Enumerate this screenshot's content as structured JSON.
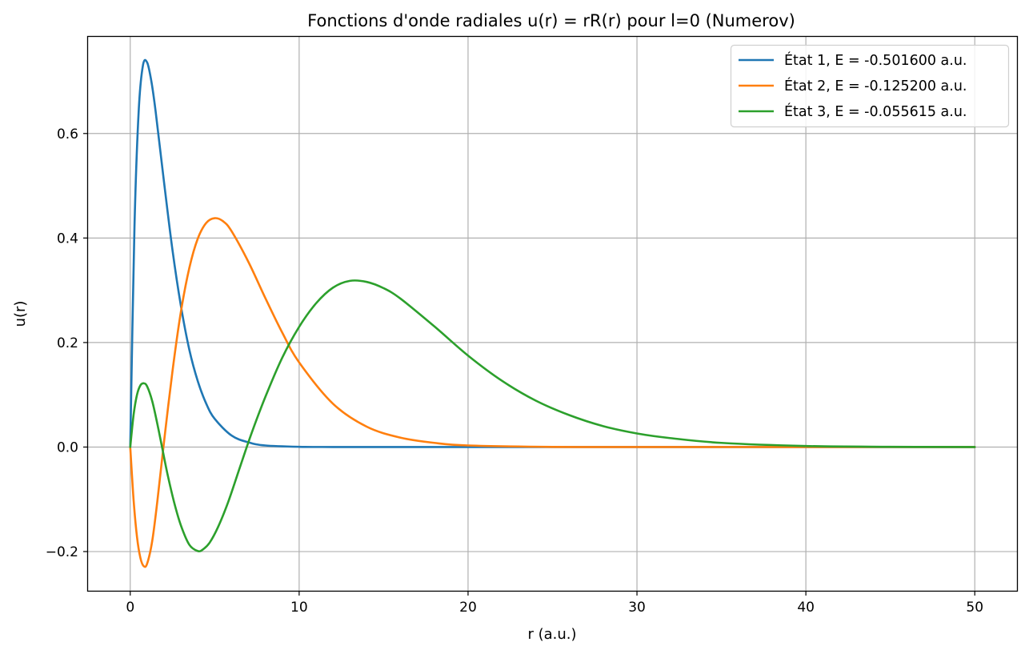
{
  "chart_data": {
    "type": "line",
    "title": "Fonctions d'onde radiales u(r) = rR(r) pour l=0 (Numerov)",
    "xlabel": "r (a.u.)",
    "ylabel": "u(r)",
    "xlim": [
      -2.5,
      52.5
    ],
    "ylim": [
      -0.275,
      0.785
    ],
    "xticks": [
      0,
      10,
      20,
      30,
      40,
      50
    ],
    "xtick_labels": [
      "0",
      "10",
      "20",
      "30",
      "40",
      "50"
    ],
    "yticks": [
      -0.2,
      0.0,
      0.2,
      0.4,
      0.6
    ],
    "ytick_labels": [
      "−0.2",
      "0.0",
      "0.2",
      "0.4",
      "0.6"
    ],
    "grid": true,
    "legend_position": "top-right",
    "series": [
      {
        "name": "État 1, E = -0.501600 a.u.",
        "color": "#1f77b4",
        "x": [
          0,
          0.25,
          0.5,
          0.75,
          1.0,
          1.25,
          1.5,
          2.0,
          2.5,
          3.0,
          3.5,
          4.0,
          4.5,
          5.0,
          6.0,
          7.0,
          8.0,
          10.0,
          12.0,
          15.0,
          20.0,
          30.0,
          40.0,
          50.0
        ],
        "y": [
          0.0,
          0.421,
          0.643,
          0.73,
          0.736,
          0.7,
          0.643,
          0.507,
          0.377,
          0.27,
          0.186,
          0.126,
          0.083,
          0.054,
          0.022,
          0.009,
          0.003,
          0.0005,
          0.0001,
          0.0,
          0.0,
          0.0,
          0.0,
          0.0
        ]
      },
      {
        "name": "État 2, E = -0.125200 a.u.",
        "color": "#ff7f0e",
        "x": [
          0,
          0.2,
          0.4,
          0.6,
          0.8,
          1.0,
          1.3,
          1.6,
          2.0,
          2.5,
          3.0,
          3.5,
          4.0,
          4.5,
          5.0,
          5.5,
          6.0,
          7.0,
          8.0,
          9.0,
          10.0,
          12.0,
          14.0,
          16.0,
          18.0,
          20.0,
          25.0,
          30.0,
          40.0,
          50.0
        ],
        "y": [
          0.0,
          -0.102,
          -0.172,
          -0.212,
          -0.228,
          -0.223,
          -0.18,
          -0.105,
          0.01,
          0.145,
          0.259,
          0.343,
          0.399,
          0.429,
          0.438,
          0.432,
          0.413,
          0.354,
          0.285,
          0.219,
          0.162,
          0.083,
          0.039,
          0.018,
          0.008,
          0.003,
          0.0003,
          0.0,
          0.0,
          0.0
        ]
      },
      {
        "name": "État 3, E = -0.055615 a.u.",
        "color": "#2ca02c",
        "x": [
          0,
          0.2,
          0.4,
          0.6,
          0.8,
          1.0,
          1.3,
          1.6,
          1.9,
          2.2,
          2.6,
          3.0,
          3.5,
          4.0,
          4.3,
          4.7,
          5.2,
          5.8,
          6.5,
          7.2,
          8.0,
          9.0,
          10.0,
          11.0,
          12.0,
          13.0,
          14.0,
          15.0,
          16.0,
          18.0,
          20.0,
          22.0,
          24.0,
          26.0,
          28.0,
          30.0,
          32.0,
          35.0,
          40.0,
          45.0,
          50.0
        ],
        "y": [
          0.0,
          0.062,
          0.1,
          0.118,
          0.122,
          0.116,
          0.088,
          0.045,
          -0.003,
          -0.051,
          -0.106,
          -0.15,
          -0.187,
          -0.199,
          -0.196,
          -0.183,
          -0.153,
          -0.105,
          -0.038,
          0.028,
          0.096,
          0.171,
          0.23,
          0.275,
          0.305,
          0.318,
          0.316,
          0.304,
          0.284,
          0.231,
          0.175,
          0.127,
          0.089,
          0.061,
          0.04,
          0.026,
          0.017,
          0.008,
          0.002,
          0.0005,
          0.0
        ]
      }
    ]
  }
}
